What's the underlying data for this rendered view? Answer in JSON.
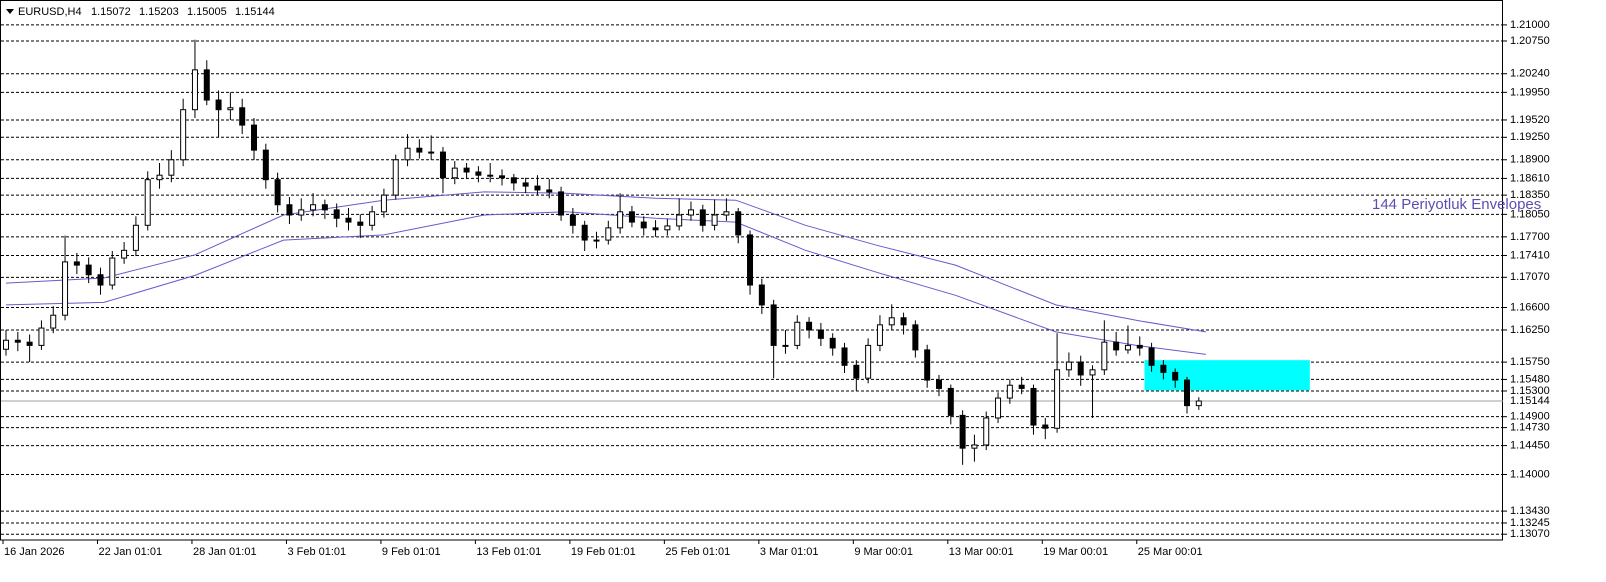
{
  "chart_data": {
    "type": "candlestick",
    "header": {
      "symbol": "EURUSD,H4",
      "open": 1.15072,
      "high": 1.15203,
      "low": 1.15005,
      "close": 1.15144
    },
    "ylim": [
      1.1298,
      1.2131
    ],
    "yticks": [
      {
        "value": 1.21,
        "label": "1.21000"
      },
      {
        "value": 1.2075,
        "label": "1.20750"
      },
      {
        "value": 1.2024,
        "label": "1.20240"
      },
      {
        "value": 1.1995,
        "label": "1.19950"
      },
      {
        "value": 1.1952,
        "label": "1.19520"
      },
      {
        "value": 1.1925,
        "label": "1.19250"
      },
      {
        "value": 1.189,
        "label": "1.18900"
      },
      {
        "value": 1.1861,
        "label": "1.18610"
      },
      {
        "value": 1.1835,
        "label": "1.18350"
      },
      {
        "value": 1.1805,
        "label": "1.18050"
      },
      {
        "value": 1.177,
        "label": "1.17700"
      },
      {
        "value": 1.1741,
        "label": "1.17410"
      },
      {
        "value": 1.1707,
        "label": "1.17070"
      },
      {
        "value": 1.166,
        "label": "1.16600"
      },
      {
        "value": 1.1625,
        "label": "1.16250"
      },
      {
        "value": 1.1575,
        "label": "1.15750"
      },
      {
        "value": 1.1548,
        "label": "1.15480"
      },
      {
        "value": 1.153,
        "label": "1.15300"
      },
      {
        "value": 1.149,
        "label": "1.14900"
      },
      {
        "value": 1.1473,
        "label": "1.14730"
      },
      {
        "value": 1.1445,
        "label": "1.14450"
      },
      {
        "value": 1.14,
        "label": "1.14000"
      },
      {
        "value": 1.1343,
        "label": "1.13430"
      },
      {
        "value": 1.13245,
        "label": "1.13245"
      },
      {
        "value": 1.1307,
        "label": "1.13070"
      }
    ],
    "current_price": 1.15144,
    "x_labels": [
      "16 Jan 2026",
      "22 Jan 01:01",
      "28 Jan 01:01",
      "3 Feb 01:01",
      "9 Feb 01:01",
      "13 Feb 01:01",
      "19 Feb 01:01",
      "25 Feb 01:01",
      "3 Mar 01:01",
      "9 Mar 00:01",
      "13 Mar 00:01",
      "19 Mar 00:01",
      "25 Mar 00:01"
    ],
    "ohlc": [
      [
        1.1595,
        1.1625,
        1.1585,
        1.1609
      ],
      [
        1.1609,
        1.1622,
        1.1592,
        1.1606
      ],
      [
        1.1606,
        1.1618,
        1.1575,
        1.1601
      ],
      [
        1.1601,
        1.164,
        1.1594,
        1.1628
      ],
      [
        1.1628,
        1.1662,
        1.162,
        1.1648
      ],
      [
        1.1648,
        1.1772,
        1.164,
        1.1731
      ],
      [
        1.1731,
        1.1745,
        1.1712,
        1.1726
      ],
      [
        1.1726,
        1.1738,
        1.1698,
        1.1711
      ],
      [
        1.1711,
        1.1722,
        1.168,
        1.1695
      ],
      [
        1.1695,
        1.1748,
        1.1688,
        1.1737
      ],
      [
        1.1737,
        1.1762,
        1.1728,
        1.1749
      ],
      [
        1.1749,
        1.1802,
        1.174,
        1.1788
      ],
      [
        1.1788,
        1.1872,
        1.178,
        1.1859
      ],
      [
        1.1859,
        1.1885,
        1.1845,
        1.1866
      ],
      [
        1.1866,
        1.1905,
        1.1855,
        1.189
      ],
      [
        1.189,
        1.1985,
        1.188,
        1.1968
      ],
      [
        1.1968,
        1.2077,
        1.1955,
        1.203
      ],
      [
        1.203,
        1.2045,
        1.1975,
        1.1983
      ],
      [
        1.1983,
        1.1998,
        1.1925,
        1.1968
      ],
      [
        1.1968,
        1.1995,
        1.1952,
        1.1971
      ],
      [
        1.1971,
        1.1985,
        1.193,
        1.1944
      ],
      [
        1.1944,
        1.1955,
        1.189,
        1.1905
      ],
      [
        1.1905,
        1.1915,
        1.1845,
        1.1859
      ],
      [
        1.1859,
        1.187,
        1.1808,
        1.182
      ],
      [
        1.182,
        1.1832,
        1.179,
        1.1804
      ],
      [
        1.1804,
        1.183,
        1.1795,
        1.1812
      ],
      [
        1.1812,
        1.1838,
        1.1802,
        1.182
      ],
      [
        1.182,
        1.1828,
        1.1798,
        1.1812
      ],
      [
        1.1812,
        1.1822,
        1.1785,
        1.1799
      ],
      [
        1.1799,
        1.1815,
        1.178,
        1.1793
      ],
      [
        1.1793,
        1.1805,
        1.1768,
        1.1788
      ],
      [
        1.1788,
        1.1818,
        1.178,
        1.1809
      ],
      [
        1.1809,
        1.1845,
        1.18,
        1.1835
      ],
      [
        1.1835,
        1.1898,
        1.1828,
        1.189
      ],
      [
        1.189,
        1.193,
        1.188,
        1.1908
      ],
      [
        1.1908,
        1.1922,
        1.1892,
        1.1902
      ],
      [
        1.1902,
        1.1928,
        1.189,
        1.1902
      ],
      [
        1.1902,
        1.191,
        1.1838,
        1.1862
      ],
      [
        1.1862,
        1.1888,
        1.1852,
        1.1877
      ],
      [
        1.1877,
        1.1885,
        1.186,
        1.1871
      ],
      [
        1.1871,
        1.188,
        1.1855,
        1.1866
      ],
      [
        1.1866,
        1.1885,
        1.1855,
        1.1865
      ],
      [
        1.1865,
        1.1875,
        1.185,
        1.1862
      ],
      [
        1.1862,
        1.1868,
        1.1842,
        1.1854
      ],
      [
        1.1854,
        1.1862,
        1.1838,
        1.1849
      ],
      [
        1.1849,
        1.1866,
        1.1835,
        1.1843
      ],
      [
        1.1843,
        1.186,
        1.183,
        1.184
      ],
      [
        1.184,
        1.1848,
        1.1795,
        1.1804
      ],
      [
        1.1804,
        1.1815,
        1.1775,
        1.1788
      ],
      [
        1.1788,
        1.1795,
        1.1748,
        1.1765
      ],
      [
        1.1765,
        1.1778,
        1.1752,
        1.1765
      ],
      [
        1.1765,
        1.1795,
        1.1758,
        1.1784
      ],
      [
        1.1784,
        1.1838,
        1.1775,
        1.1809
      ],
      [
        1.1809,
        1.1818,
        1.1785,
        1.1793
      ],
      [
        1.1793,
        1.1802,
        1.1772,
        1.1784
      ],
      [
        1.1784,
        1.1796,
        1.177,
        1.1781
      ],
      [
        1.1781,
        1.1798,
        1.1772,
        1.1787
      ],
      [
        1.1787,
        1.183,
        1.178,
        1.1804
      ],
      [
        1.1804,
        1.1825,
        1.1795,
        1.1812
      ],
      [
        1.1812,
        1.182,
        1.1778,
        1.1788
      ],
      [
        1.1788,
        1.1828,
        1.178,
        1.1804
      ],
      [
        1.1804,
        1.183,
        1.1795,
        1.1809
      ],
      [
        1.1809,
        1.1815,
        1.176,
        1.1773
      ],
      [
        1.1773,
        1.178,
        1.168,
        1.1695
      ],
      [
        1.1695,
        1.1705,
        1.165,
        1.1664
      ],
      [
        1.1664,
        1.1672,
        1.155,
        1.1601
      ],
      [
        1.1601,
        1.1625,
        1.1588,
        1.1601
      ],
      [
        1.1601,
        1.1648,
        1.1595,
        1.1637
      ],
      [
        1.1637,
        1.1645,
        1.1612,
        1.1625
      ],
      [
        1.1625,
        1.1636,
        1.16,
        1.1612
      ],
      [
        1.1612,
        1.162,
        1.1585,
        1.1597
      ],
      [
        1.1597,
        1.1605,
        1.1558,
        1.157
      ],
      [
        1.157,
        1.1578,
        1.153,
        1.155
      ],
      [
        1.155,
        1.1612,
        1.1542,
        1.1601
      ],
      [
        1.1601,
        1.1648,
        1.1592,
        1.1633
      ],
      [
        1.1633,
        1.1665,
        1.1625,
        1.1644
      ],
      [
        1.1644,
        1.1652,
        1.1618,
        1.1633
      ],
      [
        1.1633,
        1.164,
        1.1582,
        1.1594
      ],
      [
        1.1594,
        1.1602,
        1.1535,
        1.1547
      ],
      [
        1.1547,
        1.1555,
        1.1522,
        1.1534
      ],
      [
        1.1534,
        1.154,
        1.1478,
        1.1492
      ],
      [
        1.1492,
        1.15,
        1.1415,
        1.1441
      ],
      [
        1.1441,
        1.1462,
        1.142,
        1.1446
      ],
      [
        1.1446,
        1.1498,
        1.1438,
        1.1488
      ],
      [
        1.1488,
        1.1528,
        1.148,
        1.1519
      ],
      [
        1.1519,
        1.1548,
        1.151,
        1.1539
      ],
      [
        1.1539,
        1.1552,
        1.1525,
        1.1534
      ],
      [
        1.1534,
        1.154,
        1.1462,
        1.1477
      ],
      [
        1.1477,
        1.1488,
        1.1455,
        1.1472
      ],
      [
        1.1472,
        1.162,
        1.1465,
        1.1563
      ],
      [
        1.1563,
        1.159,
        1.1552,
        1.1575
      ],
      [
        1.1575,
        1.1585,
        1.1538,
        1.1555
      ],
      [
        1.1555,
        1.157,
        1.1488,
        1.1563
      ],
      [
        1.1563,
        1.164,
        1.1555,
        1.1606
      ],
      [
        1.1606,
        1.1622,
        1.1585,
        1.1594
      ],
      [
        1.1594,
        1.1632,
        1.1588,
        1.1601
      ],
      [
        1.1601,
        1.1615,
        1.1585,
        1.1597
      ],
      [
        1.1597,
        1.1605,
        1.156,
        1.157
      ],
      [
        1.157,
        1.1578,
        1.1548,
        1.1559
      ],
      [
        1.1559,
        1.1565,
        1.1535,
        1.1547
      ],
      [
        1.1547,
        1.1552,
        1.1495,
        1.15072
      ],
      [
        1.15072,
        1.15203,
        1.15005,
        1.15144
      ]
    ],
    "lines": [
      {
        "color": "#6a5acd",
        "x": [
          0,
          8.3,
          16,
          23.5,
          32,
          40.5,
          47.4,
          55,
          61.8,
          67.7,
          73.7,
          80.4,
          88.9,
          95.7,
          101.6
        ],
        "values": [
          1.1698,
          1.1706,
          1.1742,
          1.1804,
          1.1827,
          1.184,
          1.1838,
          1.183,
          1.1827,
          1.1788,
          1.1757,
          1.1726,
          1.1664,
          1.164,
          1.1622
        ]
      },
      {
        "color": "#6a5acd",
        "x": [
          0,
          8.3,
          16,
          23.5,
          32,
          40.5,
          47.4,
          55,
          61.8,
          67.7,
          73.7,
          80.4,
          88.9,
          95.7,
          101.6
        ],
        "values": [
          1.1664,
          1.1668,
          1.171,
          1.1765,
          1.1773,
          1.1804,
          1.1809,
          1.1799,
          1.1793,
          1.1749,
          1.1715,
          1.1679,
          1.1622,
          1.1601,
          1.1587
        ]
      }
    ],
    "zone": {
      "x": [
        96.4,
        110.4
      ],
      "values": [
        1.1531,
        1.1578
      ],
      "color": "#00ffff"
    },
    "annotation": "144 Periyotluk Envelopes"
  }
}
